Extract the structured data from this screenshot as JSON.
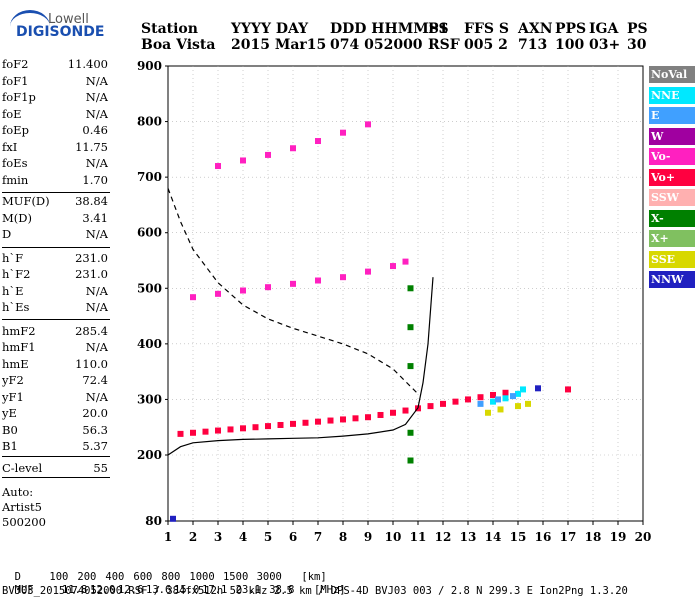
{
  "logo": {
    "brand": "Lowell",
    "product": "DIGISONDE"
  },
  "header": {
    "row1": [
      "Station",
      "YYYY DAY",
      "DDD HHMMSS",
      "P1",
      "FFS S",
      "AXN",
      "PPS",
      "IGA",
      "PS"
    ],
    "row2": [
      "Boa Vista",
      "2015 Mar15",
      "074 052000",
      "RSF",
      "005 2",
      "713",
      "100",
      "03+",
      "30"
    ]
  },
  "params": {
    "group1": [
      {
        "label": "foF2",
        "value": "11.400"
      },
      {
        "label": "foF1",
        "value": "N/A"
      },
      {
        "label": "foF1p",
        "value": "N/A"
      },
      {
        "label": "foE",
        "value": "N/A"
      },
      {
        "label": "foEp",
        "value": "0.46"
      },
      {
        "label": "fxI",
        "value": "11.75"
      },
      {
        "label": "foEs",
        "value": "N/A"
      },
      {
        "label": "fmin",
        "value": "1.70"
      }
    ],
    "group2": [
      {
        "label": "MUF(D)",
        "value": "38.84"
      },
      {
        "label": "M(D)",
        "value": "3.41"
      },
      {
        "label": "D",
        "value": "N/A"
      }
    ],
    "group3": [
      {
        "label": "h`F",
        "value": "231.0"
      },
      {
        "label": "h`F2",
        "value": "231.0"
      },
      {
        "label": "h`E",
        "value": "N/A"
      },
      {
        "label": "h`Es",
        "value": "N/A"
      }
    ],
    "group4": [
      {
        "label": "hmF2",
        "value": "285.4"
      },
      {
        "label": "hmF1",
        "value": "N/A"
      },
      {
        "label": "hmE",
        "value": "110.0"
      },
      {
        "label": "yF2",
        "value": "72.4"
      },
      {
        "label": "yF1",
        "value": "N/A"
      },
      {
        "label": "yE",
        "value": "20.0"
      },
      {
        "label": "B0",
        "value": "56.3"
      },
      {
        "label": "B1",
        "value": "5.37"
      }
    ],
    "group5": [
      {
        "label": "C-level",
        "value": "55"
      }
    ]
  },
  "auto": {
    "line1": "Auto:",
    "line2": "Artist5",
    "line3": "500200"
  },
  "legend": [
    {
      "label": "NoVal",
      "color": "#808080",
      "text": "#ffffff"
    },
    {
      "label": "NNE",
      "color": "#00e8ff",
      "text": "#ffffff"
    },
    {
      "label": "E",
      "color": "#40a0ff",
      "text": "#ffffff"
    },
    {
      "label": "W",
      "color": "#a000a0",
      "text": "#ffffff"
    },
    {
      "label": "Vo-",
      "color": "#ff20c0",
      "text": "#ffffff"
    },
    {
      "label": "Vo+",
      "color": "#ff0040",
      "text": "#ffffff"
    },
    {
      "label": "SSW",
      "color": "#ffb0b0",
      "text": "#ffffff"
    },
    {
      "label": "X-",
      "color": "#008000",
      "text": "#ffffff"
    },
    {
      "label": "X+",
      "color": "#80c060",
      "text": "#ffffff"
    },
    {
      "label": "SSE",
      "color": "#d8d800",
      "text": "#ffffff"
    },
    {
      "label": "NNW",
      "color": "#2020c0",
      "text": "#ffffff"
    }
  ],
  "footer": {
    "distance_label": "D",
    "distances": [
      "100",
      "200",
      "400",
      "600",
      "800",
      "1000",
      "1500",
      "3000",
      "[km]"
    ],
    "muf_label": "MUF",
    "mufs": [
      "11.8",
      "12.0",
      "12.6",
      "13.6",
      "15.0",
      "17.1",
      "23.1",
      "38.8",
      "[MHz]"
    ],
    "info": "BVJ03_2015074052000.RSF / 384fx512h 50 kHz 2.5 km / DPS-4D BVJ03 003 / 2.8 N 299.3 E Ion2Png 1.3.20"
  },
  "chart_data": {
    "type": "scatter",
    "title": "",
    "xlabel": "",
    "ylabel": "",
    "xlim": [
      1,
      20
    ],
    "ylim": [
      80,
      900
    ],
    "x_ticks": [
      1,
      2,
      3,
      4,
      5,
      6,
      7,
      8,
      9,
      10,
      11,
      12,
      13,
      14,
      15,
      16,
      17,
      18,
      19,
      20
    ],
    "y_ticks": [
      80,
      200,
      300,
      400,
      500,
      600,
      700,
      800,
      900
    ],
    "grid": true,
    "series": [
      {
        "name": "Vo+",
        "color": "#ff0040",
        "points": [
          [
            1.5,
            238
          ],
          [
            2.0,
            240
          ],
          [
            2.5,
            242
          ],
          [
            3.0,
            244
          ],
          [
            3.5,
            246
          ],
          [
            4.0,
            248
          ],
          [
            4.5,
            250
          ],
          [
            5.0,
            252
          ],
          [
            5.5,
            254
          ],
          [
            6.0,
            256
          ],
          [
            6.5,
            258
          ],
          [
            7.0,
            260
          ],
          [
            7.5,
            262
          ],
          [
            8.0,
            264
          ],
          [
            8.5,
            266
          ],
          [
            9.0,
            268
          ],
          [
            9.5,
            272
          ],
          [
            10.0,
            276
          ],
          [
            10.5,
            280
          ],
          [
            11.0,
            284
          ],
          [
            11.5,
            288
          ],
          [
            12.0,
            292
          ],
          [
            12.5,
            296
          ],
          [
            13.0,
            300
          ],
          [
            13.5,
            304
          ],
          [
            14.0,
            308
          ],
          [
            14.5,
            312
          ],
          [
            17.0,
            318
          ]
        ]
      },
      {
        "name": "Vo-",
        "color": "#ff20c0",
        "points": [
          [
            2.0,
            484
          ],
          [
            3.0,
            490
          ],
          [
            4.0,
            496
          ],
          [
            5.0,
            502
          ],
          [
            6.0,
            508
          ],
          [
            7.0,
            514
          ],
          [
            8.0,
            520
          ],
          [
            9.0,
            530
          ],
          [
            10.0,
            540
          ],
          [
            10.5,
            548
          ],
          [
            3.0,
            720
          ],
          [
            4.0,
            730
          ],
          [
            5.0,
            740
          ],
          [
            6.0,
            752
          ],
          [
            7.0,
            765
          ],
          [
            8.0,
            780
          ],
          [
            9.0,
            795
          ]
        ]
      },
      {
        "name": "NNE",
        "color": "#00e8ff",
        "points": [
          [
            14.0,
            296
          ],
          [
            14.5,
            302
          ],
          [
            15.0,
            310
          ],
          [
            15.2,
            318
          ]
        ]
      },
      {
        "name": "E",
        "color": "#40a0ff",
        "points": [
          [
            13.5,
            292
          ],
          [
            14.2,
            300
          ],
          [
            14.8,
            306
          ]
        ]
      },
      {
        "name": "X-",
        "color": "#008000",
        "points": [
          [
            10.7,
            500
          ],
          [
            10.7,
            430
          ],
          [
            10.7,
            360
          ],
          [
            10.7,
            240
          ],
          [
            10.7,
            190
          ]
        ]
      },
      {
        "name": "SSE",
        "color": "#d8d800",
        "points": [
          [
            13.8,
            276
          ],
          [
            14.3,
            282
          ],
          [
            15.0,
            288
          ],
          [
            15.4,
            292
          ]
        ]
      },
      {
        "name": "NNW",
        "color": "#2020c0",
        "points": [
          [
            1.2,
            84
          ],
          [
            15.8,
            320
          ]
        ]
      }
    ],
    "curves": [
      {
        "name": "profile",
        "style": "solid",
        "points": [
          [
            1.0,
            200
          ],
          [
            1.5,
            215
          ],
          [
            2.0,
            222
          ],
          [
            3.0,
            226
          ],
          [
            4.0,
            228
          ],
          [
            5.0,
            229
          ],
          [
            6.0,
            230
          ],
          [
            7.0,
            231
          ],
          [
            8.0,
            234
          ],
          [
            9.0,
            238
          ],
          [
            10.0,
            245
          ],
          [
            10.5,
            255
          ],
          [
            11.0,
            285
          ],
          [
            11.2,
            330
          ],
          [
            11.4,
            400
          ],
          [
            11.5,
            460
          ],
          [
            11.6,
            520
          ]
        ]
      },
      {
        "name": "muf-curve",
        "style": "dashed",
        "points": [
          [
            1.0,
            680
          ],
          [
            1.5,
            620
          ],
          [
            2.0,
            570
          ],
          [
            3.0,
            510
          ],
          [
            4.0,
            470
          ],
          [
            5.0,
            445
          ],
          [
            6.0,
            428
          ],
          [
            7.0,
            414
          ],
          [
            8.0,
            400
          ],
          [
            9.0,
            382
          ],
          [
            10.0,
            355
          ],
          [
            11.0,
            310
          ]
        ]
      }
    ]
  }
}
